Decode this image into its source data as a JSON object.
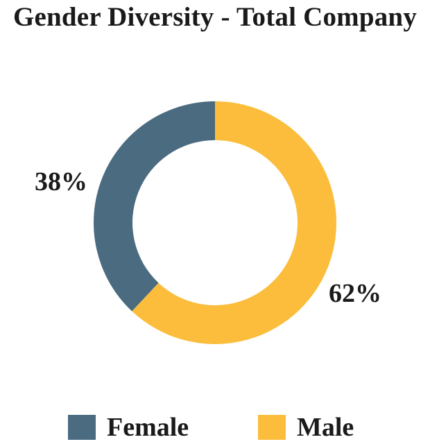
{
  "chart_data": {
    "type": "pie",
    "title": "Gender Diversity - Total Company",
    "series": [
      {
        "name": "Female",
        "value": 38,
        "label": "38%",
        "color": "#4a6b80"
      },
      {
        "name": "Male",
        "value": 62,
        "label": "62%",
        "color": "#fbbd3b"
      }
    ],
    "legend": {
      "placement": "bottom"
    }
  }
}
